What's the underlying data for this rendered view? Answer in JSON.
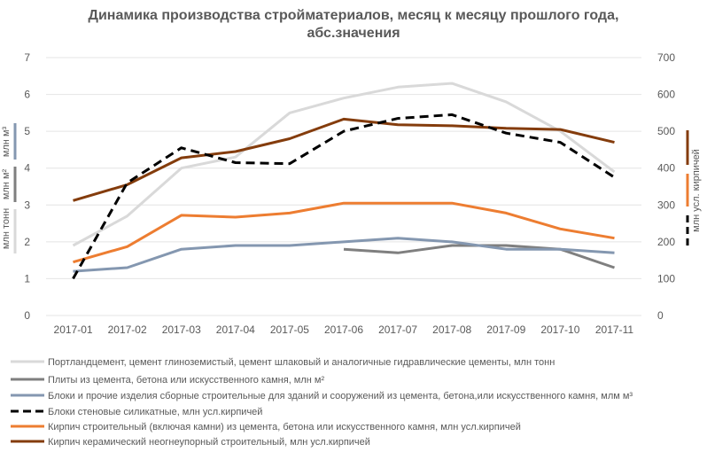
{
  "chart_data": {
    "type": "line",
    "title_line1": "Динамика производства стройматериалов, месяц к месяцу прошлого года,",
    "title_line2": "абс.значения",
    "categories": [
      "2017-01",
      "2017-02",
      "2017-03",
      "2017-04",
      "2017-05",
      "2017-06",
      "2017-07",
      "2017-08",
      "2017-09",
      "2017-10",
      "2017-11"
    ],
    "y_left": {
      "min": 0,
      "max": 7,
      "ticks": [
        "0",
        "1",
        "2",
        "3",
        "4",
        "5",
        "6",
        "7"
      ]
    },
    "y_right": {
      "min": 0,
      "max": 700,
      "ticks": [
        "0",
        "100",
        "200",
        "300",
        "400",
        "500",
        "600",
        "700"
      ]
    },
    "left_axis_labels": [
      "млн м³",
      "млн м²",
      "млн тонн"
    ],
    "right_axis_label": "млн усл. кирпичей",
    "grid": true,
    "legend_position": "bottom",
    "series": [
      {
        "name": "Портландцемент, цемент глиноземистый, цемент шлаковый и аналогичные гидравлические цементы, млн тонн",
        "axis": "left",
        "color": "#d9d9d9",
        "dash": false,
        "values": [
          1.9,
          2.7,
          4.0,
          4.3,
          5.5,
          5.9,
          6.2,
          6.3,
          5.8,
          5.0,
          3.9
        ]
      },
      {
        "name": "Плиты из цемента, бетона или искусственного камня, млн м²",
        "axis": "left",
        "color": "#7f7f7f",
        "dash": false,
        "values": [
          null,
          null,
          null,
          null,
          null,
          1.8,
          1.7,
          1.9,
          1.9,
          1.8,
          1.3
        ]
      },
      {
        "name": "Блоки и прочие изделия сборные строительные для зданий и сооружений из цемента, бетона,или искусственного камня, млм м³",
        "axis": "left",
        "color": "#8497b0",
        "dash": false,
        "values": [
          1.2,
          1.3,
          1.8,
          1.9,
          1.9,
          2.0,
          2.1,
          2.0,
          1.8,
          1.8,
          1.7
        ]
      },
      {
        "name": "Блоки стеновые силикатные, млн усл.кирпичей",
        "axis": "right",
        "color": "#000000",
        "dash": true,
        "values": [
          100,
          360,
          455,
          415,
          412,
          500,
          535,
          545,
          495,
          470,
          375
        ]
      },
      {
        "name": "Кирпич строительный (включая камни) из цемента, бетона или искусственного камня, млн усл.кирпичей",
        "axis": "right",
        "color": "#ed7d31",
        "dash": false,
        "values": [
          145,
          187,
          272,
          267,
          278,
          305,
          305,
          305,
          278,
          235,
          210
        ]
      },
      {
        "name": "Кирпич керамический неогнеупорный строительный, млн усл.кирпичей",
        "axis": "right",
        "color": "#843c0c",
        "dash": false,
        "values": [
          312,
          355,
          428,
          445,
          480,
          533,
          518,
          515,
          508,
          505,
          470
        ]
      }
    ]
  }
}
